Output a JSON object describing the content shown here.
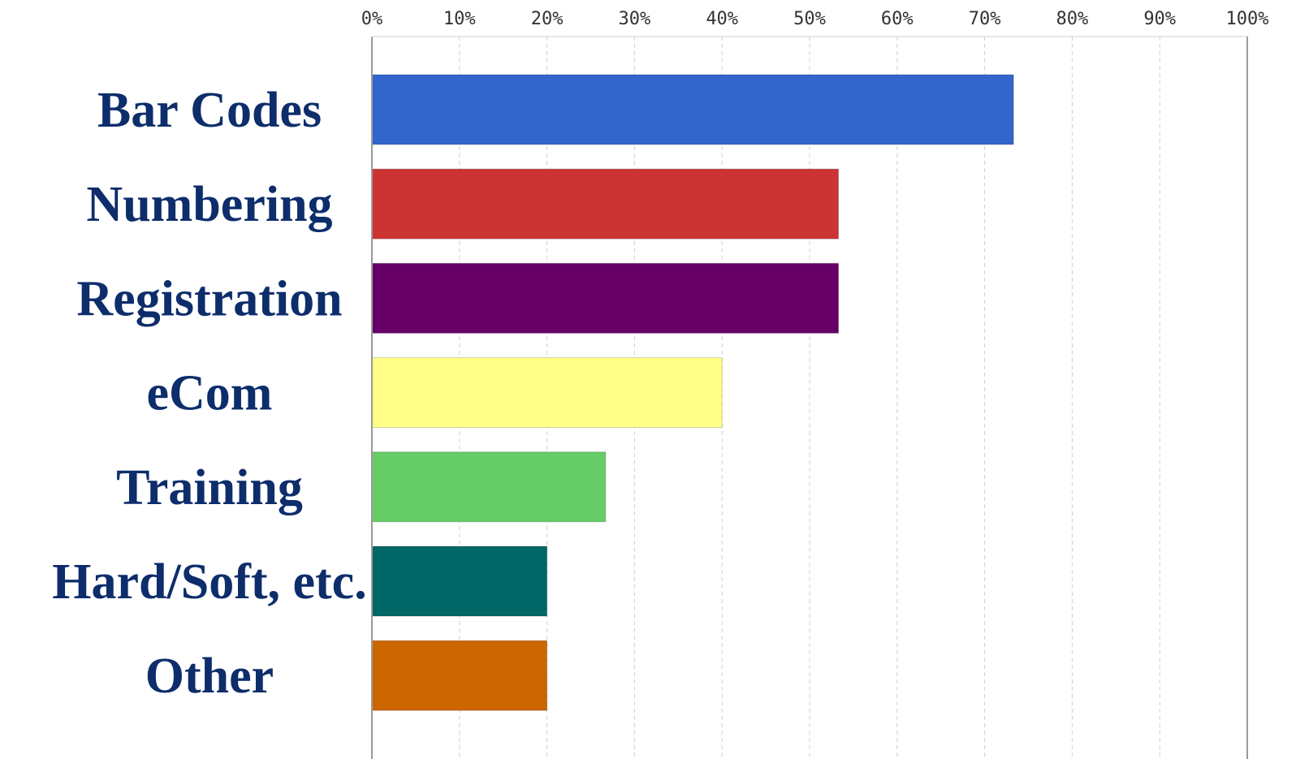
{
  "chart_data": {
    "type": "bar",
    "orientation": "horizontal",
    "categories": [
      "Bar Codes",
      "Numbering",
      "Registration",
      "eCom",
      "Training",
      "Hard/Soft, etc.",
      "Other"
    ],
    "values": [
      73.3,
      53.3,
      53.3,
      40,
      26.7,
      20,
      20
    ],
    "colors": [
      "#3366cc",
      "#cc3333",
      "#660066",
      "#ffff88",
      "#66cc66",
      "#006666",
      "#cc6600"
    ],
    "xlim": [
      0,
      100
    ],
    "xticks": [
      0,
      10,
      20,
      30,
      40,
      50,
      60,
      70,
      80,
      90,
      100
    ],
    "xtick_labels": [
      "0%",
      "10%",
      "20%",
      "30%",
      "40%",
      "50%",
      "60%",
      "70%",
      "80%",
      "90%",
      "100%"
    ],
    "tick_position": "top",
    "grid": true,
    "label_color": "#0d2d6b",
    "title": "",
    "xlabel": "",
    "ylabel": ""
  }
}
